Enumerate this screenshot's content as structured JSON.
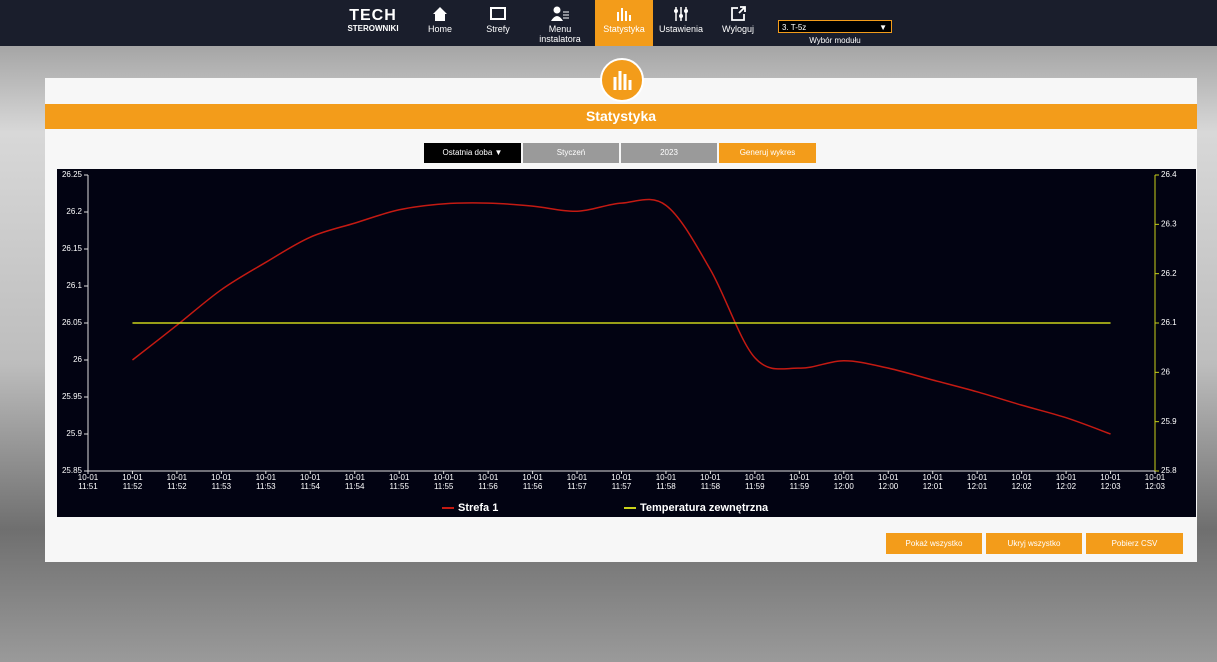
{
  "nav": {
    "brand": "TECH",
    "brand_sub": "STEROWNIKI",
    "items": [
      "Home",
      "Strefy",
      "Menu instalatora",
      "Statystyka",
      "Ustawienia",
      "Wyloguj"
    ],
    "module": "3. T-5z",
    "module_label": "Wybór modułu"
  },
  "page_title": "Statystyka",
  "controls": {
    "period": "Ostatnia doba",
    "month": "Styczeń",
    "year": "2023",
    "generate": "Generuj wykres"
  },
  "chart_data": {
    "type": "line",
    "categories": [
      [
        "10-01",
        "11:51"
      ],
      [
        "10-01",
        "11:52"
      ],
      [
        "10-01",
        "11:52"
      ],
      [
        "10-01",
        "11:53"
      ],
      [
        "10-01",
        "11:53"
      ],
      [
        "10-01",
        "11:54"
      ],
      [
        "10-01",
        "11:54"
      ],
      [
        "10-01",
        "11:55"
      ],
      [
        "10-01",
        "11:55"
      ],
      [
        "10-01",
        "11:56"
      ],
      [
        "10-01",
        "11:56"
      ],
      [
        "10-01",
        "11:57"
      ],
      [
        "10-01",
        "11:57"
      ],
      [
        "10-01",
        "11:58"
      ],
      [
        "10-01",
        "11:58"
      ],
      [
        "10-01",
        "11:59"
      ],
      [
        "10-01",
        "11:59"
      ],
      [
        "10-01",
        "12:00"
      ],
      [
        "10-01",
        "12:00"
      ],
      [
        "10-01",
        "12:01"
      ],
      [
        "10-01",
        "12:01"
      ],
      [
        "10-01",
        "12:02"
      ],
      [
        "10-01",
        "12:02"
      ],
      [
        "10-01",
        "12:03"
      ],
      [
        "10-01",
        "12:03"
      ]
    ],
    "series": [
      {
        "name": "Strefa 1",
        "color": "#c41a12",
        "values": [
          null,
          26.0,
          26.047,
          26.095,
          26.132,
          26.166,
          26.185,
          26.203,
          26.211,
          26.212,
          26.208,
          26.201,
          26.212,
          26.209,
          26.122,
          26.003,
          25.989,
          25.999,
          25.989,
          25.973,
          25.957,
          25.939,
          25.922,
          25.9,
          null
        ]
      },
      {
        "name": "Temperatura zewnętrzna",
        "color": "#c9d21a",
        "axis": "y2",
        "values": [
          null,
          26.1,
          26.1,
          26.1,
          26.1,
          26.1,
          26.1,
          26.1,
          26.1,
          26.1,
          26.1,
          26.1,
          26.1,
          26.1,
          26.1,
          26.1,
          26.1,
          26.1,
          26.1,
          26.1,
          26.1,
          26.1,
          26.1,
          26.1,
          null
        ]
      }
    ],
    "ylim": [
      25.85,
      26.25
    ],
    "yticks": [
      25.85,
      25.9,
      25.95,
      26,
      26.05,
      26.1,
      26.15,
      26.2,
      26.25
    ],
    "y2lim": [
      25.8,
      26.4
    ],
    "y2ticks": [
      25.8,
      25.9,
      26,
      26.1,
      26.2,
      26.3,
      26.4
    ],
    "grid": false
  },
  "buttons": [
    "Pokaż wszystko",
    "Ukryj wszystko",
    "Pobierz CSV"
  ]
}
